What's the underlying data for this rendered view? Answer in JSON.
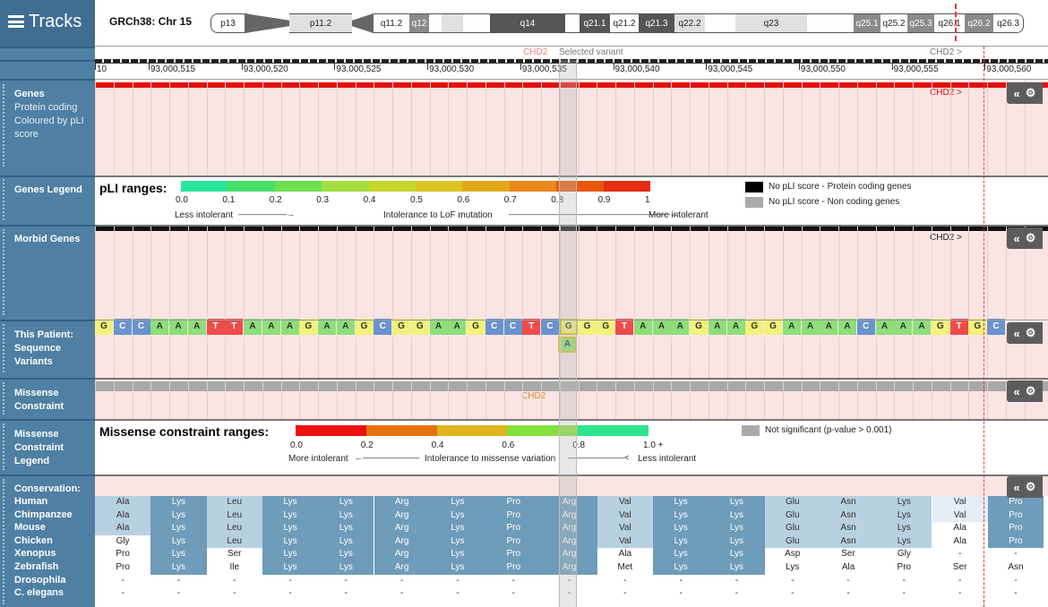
{
  "app": {
    "title": "Tracks",
    "chromosome": "GRCh38: Chr 15"
  },
  "ideogram": {
    "bands": [
      {
        "label": "p13",
        "style": "w"
      },
      {
        "label": "",
        "style": "cen"
      },
      {
        "label": "p11.2",
        "style": "l"
      },
      {
        "label": "",
        "style": "cen2"
      },
      {
        "label": "q11.2",
        "style": "w"
      },
      {
        "label": "q12",
        "style": "g"
      },
      {
        "label": "",
        "style": "w"
      },
      {
        "label": "",
        "style": "l"
      },
      {
        "label": "",
        "style": "w"
      },
      {
        "label": "q14",
        "style": "d"
      },
      {
        "label": "",
        "style": "w"
      },
      {
        "label": "q21.1",
        "style": "d"
      },
      {
        "label": "q21.2",
        "style": "w"
      },
      {
        "label": "q21.3",
        "style": "d"
      },
      {
        "label": "q22.2",
        "style": "l"
      },
      {
        "label": "",
        "style": "w"
      },
      {
        "label": "q23",
        "style": "l"
      },
      {
        "label": "",
        "style": "w"
      },
      {
        "label": "q25.1",
        "style": "g"
      },
      {
        "label": "q25.2",
        "style": "w"
      },
      {
        "label": "q25.3",
        "style": "g"
      },
      {
        "label": "q26.1",
        "style": "w"
      },
      {
        "label": "q26.2",
        "style": "g"
      },
      {
        "label": "q26.3",
        "style": "w"
      }
    ]
  },
  "ruler": {
    "gene_marker_left": "CHD2",
    "selected_variant": "Selected variant",
    "gene_marker_right": "CHD2 >",
    "positions": [
      "10",
      "93,000,515",
      "93,000,520",
      "93,000,525",
      "93,000,530",
      "93,000,535",
      "93,000,540",
      "93,000,545",
      "93,000,550",
      "93,000,555",
      "93,000,560"
    ]
  },
  "tracks": {
    "genes": {
      "label": "Genes",
      "sub": "Protein coding Coloured by pLI score",
      "gene": "CHD2 >"
    },
    "genes_legend": {
      "label": "Genes Legend",
      "title": "pLI ranges:",
      "ticks": [
        "0.0",
        "0.1",
        "0.2",
        "0.3",
        "0.4",
        "0.5",
        "0.6",
        "0.7",
        "0.8",
        "0.9",
        "1"
      ],
      "colors": [
        "#27e59a",
        "#47e06a",
        "#6ee050",
        "#a4dd3f",
        "#c7d52d",
        "#dcc324",
        "#e2a81c",
        "#e88818",
        "#e7580e",
        "#e52d13"
      ],
      "left": "Less intolerant",
      "middle": "Intolerance to LoF mutation",
      "right": "More intolerant",
      "key1": "No pLI score - Protein coding genes",
      "key2": "No pLI score - Non coding genes"
    },
    "morbid": {
      "label": "Morbid Genes",
      "gene": "CHD2 >"
    },
    "patient": {
      "label": "This Patient: Sequence Variants",
      "sequence": [
        "G",
        "C",
        "C",
        "A",
        "A",
        "A",
        "T",
        "T",
        "A",
        "A",
        "A",
        "G",
        "A",
        "A",
        "G",
        "C",
        "G",
        "G",
        "A",
        "A",
        "G",
        "C",
        "C",
        "T",
        "C",
        "G",
        "G",
        "G",
        "T",
        "A",
        "A",
        "A",
        "G",
        "A",
        "A",
        "G",
        "G",
        "A",
        "A",
        "A",
        "A",
        "C",
        "A",
        "A",
        "A",
        "G",
        "T",
        "G",
        "C"
      ],
      "alt": "A"
    },
    "missense": {
      "label": "Missense Constraint",
      "gene": "CHD2"
    },
    "missense_legend": {
      "label": "Missense Constraint Legend",
      "title": "Missense constraint ranges:",
      "ticks": [
        "0.0",
        "0.2",
        "0.4",
        "0.6",
        "0.8",
        "1.0 +"
      ],
      "colors": [
        "#ee1010",
        "#e8720f",
        "#e0b41f",
        "#85e040",
        "#2ee58e"
      ],
      "left": "More intolerant",
      "middle": "Intolerance to missense variation",
      "right": "Less intolerant",
      "key": "Not significant (p-value > 0.001)"
    },
    "conservation": {
      "label": "Conservation:",
      "species": [
        "Human",
        "Chimpanzee",
        "Mouse",
        "Chicken",
        "Xenopus",
        "Zebrafish",
        "Drosophila",
        "C. elegans"
      ],
      "columns": [
        [
          "Ala",
          "Ala",
          "Ala",
          "Gly",
          "Pro",
          "Pro",
          "-",
          "-"
        ],
        [
          "Lys",
          "Lys",
          "Lys",
          "Lys",
          "Lys",
          "Lys",
          "-",
          "-"
        ],
        [
          "Leu",
          "Leu",
          "Leu",
          "Leu",
          "Ser",
          "Ile",
          "-",
          "-"
        ],
        [
          "Lys",
          "Lys",
          "Lys",
          "Lys",
          "Lys",
          "Lys",
          "-",
          "-"
        ],
        [
          "Lys",
          "Lys",
          "Lys",
          "Lys",
          "Lys",
          "Lys",
          "-",
          "-"
        ],
        [
          "Arg",
          "Arg",
          "Arg",
          "Arg",
          "Arg",
          "Arg",
          "-",
          "-"
        ],
        [
          "Lys",
          "Lys",
          "Lys",
          "Lys",
          "Lys",
          "Lys",
          "-",
          "-"
        ],
        [
          "Pro",
          "Pro",
          "Pro",
          "Pro",
          "Pro",
          "Pro",
          "-",
          "-"
        ],
        [
          "Arg",
          "Arg",
          "Arg",
          "Arg",
          "Arg",
          "Arg",
          "-",
          "-"
        ],
        [
          "Val",
          "Val",
          "Val",
          "Val",
          "Ala",
          "Met",
          "-",
          "-"
        ],
        [
          "Lys",
          "Lys",
          "Lys",
          "Lys",
          "Lys",
          "Lys",
          "-",
          "-"
        ],
        [
          "Lys",
          "Lys",
          "Lys",
          "Lys",
          "Lys",
          "Lys",
          "-",
          "-"
        ],
        [
          "Glu",
          "Glu",
          "Glu",
          "Glu",
          "Asp",
          "Lys",
          "-",
          "-"
        ],
        [
          "Asn",
          "Asn",
          "Asn",
          "Asn",
          "Ser",
          "Ala",
          "-",
          "-"
        ],
        [
          "Lys",
          "Lys",
          "Lys",
          "Lys",
          "Gly",
          "Pro",
          "-",
          "-"
        ],
        [
          "Val",
          "Val",
          "Ala",
          "Ala",
          "-",
          "Ser",
          "-",
          "-"
        ],
        [
          "Pro",
          "Pro",
          "Pro",
          "Pro",
          "-",
          "Asn",
          "-",
          "-"
        ]
      ]
    }
  },
  "controls": {
    "collapse": "«",
    "settings": "⚙"
  }
}
